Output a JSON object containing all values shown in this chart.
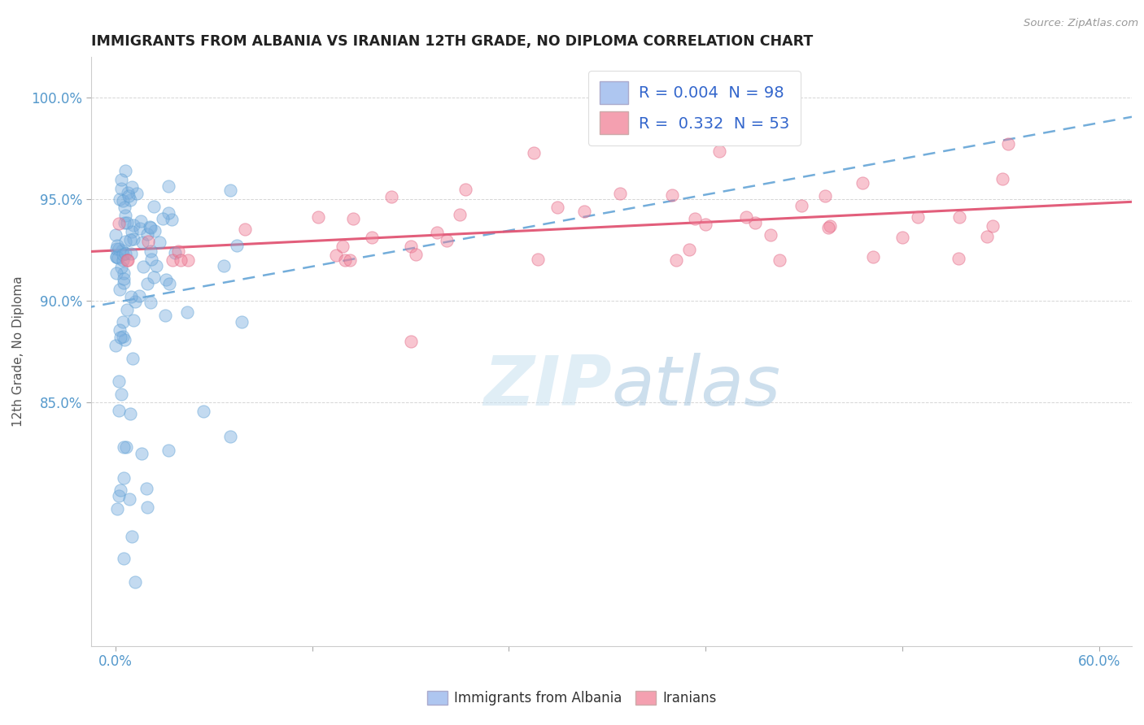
{
  "title": "IMMIGRANTS FROM ALBANIA VS IRANIAN 12TH GRADE, NO DIPLOMA CORRELATION CHART",
  "source": "Source: ZipAtlas.com",
  "ylabel": "12th Grade, No Diploma",
  "watermark_zip": "ZIP",
  "watermark_atlas": "atlas",
  "albania_dot_color": "#7baede",
  "albania_dot_edge": "#5b9fd4",
  "iranian_dot_color": "#f08098",
  "iranian_dot_edge": "#e06080",
  "albania_line_color": "#5b9fd4",
  "iranian_line_color": "#e05070",
  "legend_alb_color": "#aec6f0",
  "legend_ira_color": "#f4a0b0",
  "tick_label_color": "#5599cc",
  "ylabel_color": "#555555",
  "title_color": "#222222",
  "source_color": "#999999",
  "grid_color": "#cccccc",
  "x_min": -1.5,
  "x_max": 62,
  "y_min": 73,
  "y_max": 102,
  "x_ticks": [
    0,
    12,
    24,
    36,
    48,
    60
  ],
  "x_tick_labels": [
    "0.0%",
    "",
    "",
    "",
    "",
    "60.0%"
  ],
  "y_ticks": [
    85,
    90,
    95,
    100
  ],
  "y_tick_labels": [
    "85.0%",
    "90.0%",
    "95.0%",
    "100.0%"
  ]
}
